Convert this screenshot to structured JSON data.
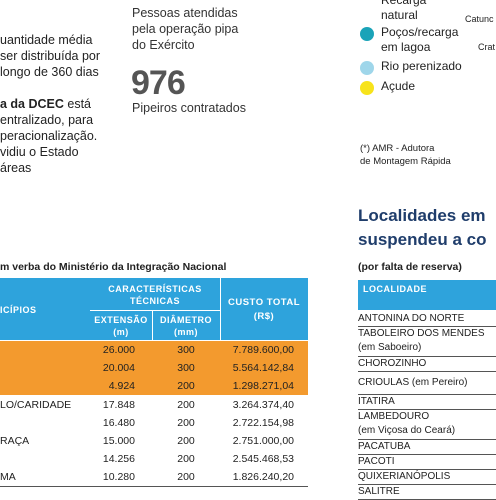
{
  "left_text": {
    "para1": [
      "uantidade média",
      "ser distribuída por",
      "longo de 360 dias"
    ],
    "para2_bold": "a da DCEC",
    "para2_first_rest": " está",
    "para2": [
      "entralizado, para",
      "peracionalização.",
      "vidiu o Estado",
      "áreas"
    ]
  },
  "stats": {
    "people_label": [
      "Pessoas atendidas",
      "pela operação pipa",
      "do Exército"
    ],
    "drivers_value": "976",
    "drivers_label": "Pipeiros contratados"
  },
  "legend": {
    "items": [
      {
        "label": [
          "Recarga",
          "natural"
        ]
      },
      {
        "label": [
          "Poços/recarga",
          "em lagoa"
        ],
        "color": "#1aa3b8"
      },
      {
        "label": [
          "Rio perenizado"
        ],
        "color": "#9fd6ea"
      },
      {
        "label": [
          "Açude"
        ],
        "color": "#f7e31b"
      }
    ],
    "map_labels": [
      "Catunc",
      "Crat"
    ],
    "note": [
      "(*) AMR - Adutora",
      "de Montagem Rápida"
    ]
  },
  "localities": {
    "title": [
      "Localidades em",
      "suspendeu a co"
    ],
    "subtitle": "(por falta de reserva)",
    "header": "LOCALIDADE",
    "rows": [
      [
        "ANTONINA DO NORTE"
      ],
      [
        "TABOLEIRO DOS MENDES",
        "(em Saboeiro)"
      ],
      [
        "CHOROZINHO"
      ],
      [
        "CRIOULAS (em Pereiro)"
      ],
      [
        "ITATIRA"
      ],
      [
        "LAMBEDOURO",
        "(em Viçosa do Ceará)"
      ],
      [
        "PACATUBA"
      ],
      [
        "PACOTI"
      ],
      [
        "QUIXERIANÓPOLIS"
      ],
      [
        "SALITRE"
      ]
    ]
  },
  "table": {
    "title": "m verba do Ministério da Integração Nacional",
    "headers": {
      "municipios": "ICÍPIOS",
      "tech": [
        "CARACTERÍSTICAS",
        "TÉCNICAS"
      ],
      "extensao": [
        "EXTENSÃO",
        "(m)"
      ],
      "diametro": [
        "DIÂMETRO",
        "(mm)"
      ],
      "custo": [
        "CUSTO TOTAL",
        "(R$)"
      ]
    },
    "rows": [
      [
        "",
        "26.000",
        "300",
        "7.789.600,00"
      ],
      [
        "",
        "20.004",
        "300",
        "5.564.142,84"
      ],
      [
        "",
        "4.924",
        "200",
        "1.298.271,04"
      ],
      [
        "LO/CARIDADE",
        "17.848",
        "200",
        "3.264.374,40"
      ],
      [
        "",
        "16.480",
        "200",
        "2.722.154,98"
      ],
      [
        "RAÇA",
        "15.000",
        "200",
        "2.751.000,00"
      ],
      [
        "",
        "14.256",
        "200",
        "2.545.468,53"
      ],
      [
        "MA",
        "10.280",
        "200",
        "1.826.240,20"
      ]
    ],
    "highlight_color": "#f39a2e"
  }
}
